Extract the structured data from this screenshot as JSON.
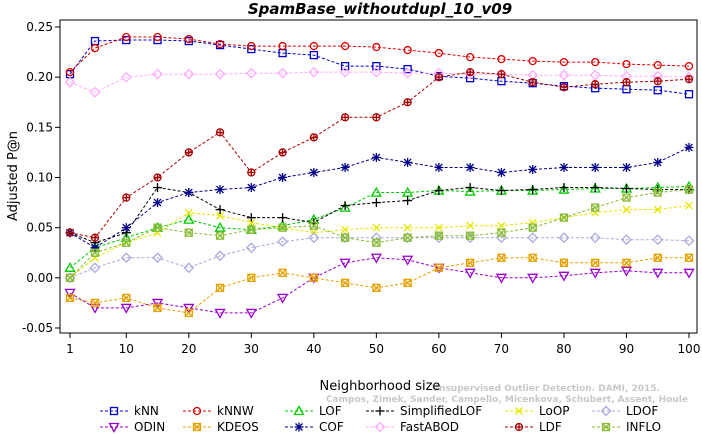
{
  "chart_data": {
    "type": "line",
    "title": "SpamBase_withoutdupl_10_v09",
    "xlabel": "Neighborhood size",
    "ylabel": "Adjusted P@n",
    "xlim": [
      1,
      100
    ],
    "ylim": [
      -0.05,
      0.25
    ],
    "x_ticks": [
      "1",
      "10",
      "20",
      "30",
      "40",
      "50",
      "60",
      "70",
      "80",
      "90",
      "100"
    ],
    "y_ticks": [
      "-0.05",
      "0.00",
      "0.05",
      "0.10",
      "0.15",
      "0.20",
      "0.25"
    ],
    "grid": false,
    "legend_position": "bottom",
    "watermark": [
      "Campos, Zimek, Sander, Campello, Micenkova, Schubert, Assent, Houle",
      "Unsupervised Outlier Detection. DAMI, 2015."
    ],
    "x_points": [
      1,
      5,
      10,
      15,
      20,
      25,
      30,
      35,
      40,
      45,
      50,
      55,
      60,
      65,
      70,
      75,
      80,
      85,
      90,
      95,
      100
    ],
    "series": [
      {
        "name": "kNN",
        "color": "#0000cc",
        "marker": "square",
        "values": [
          0.203,
          0.236,
          0.237,
          0.237,
          0.236,
          0.232,
          0.228,
          0.224,
          0.222,
          0.211,
          0.211,
          0.208,
          0.201,
          0.199,
          0.196,
          0.194,
          0.191,
          0.189,
          0.188,
          0.187,
          0.183
        ]
      },
      {
        "name": "kNNW",
        "color": "#dd0000",
        "marker": "circle",
        "values": [
          0.205,
          0.229,
          0.24,
          0.24,
          0.238,
          0.233,
          0.231,
          0.231,
          0.231,
          0.231,
          0.23,
          0.227,
          0.224,
          0.22,
          0.218,
          0.216,
          0.215,
          0.215,
          0.213,
          0.212,
          0.211
        ]
      },
      {
        "name": "LOF",
        "color": "#00cc00",
        "marker": "triangle-up",
        "values": [
          0.01,
          0.03,
          0.04,
          0.05,
          0.058,
          0.05,
          0.048,
          0.052,
          0.058,
          0.07,
          0.085,
          0.085,
          0.087,
          0.086,
          0.087,
          0.087,
          0.088,
          0.089,
          0.089,
          0.09,
          0.091
        ]
      },
      {
        "name": "SimplifiedLOF",
        "color": "#000000",
        "marker": "plus",
        "values": [
          0.045,
          0.035,
          0.045,
          0.09,
          0.085,
          0.068,
          0.06,
          0.06,
          0.055,
          0.072,
          0.075,
          0.077,
          0.087,
          0.09,
          0.087,
          0.088,
          0.09,
          0.09,
          0.089,
          0.088,
          0.088
        ]
      },
      {
        "name": "LoOP",
        "color": "#e6e600",
        "marker": "cross",
        "values": [
          0.0,
          0.02,
          0.035,
          0.045,
          0.065,
          0.062,
          0.055,
          0.05,
          0.045,
          0.048,
          0.05,
          0.05,
          0.05,
          0.052,
          0.052,
          0.055,
          0.06,
          0.065,
          0.068,
          0.068,
          0.072
        ]
      },
      {
        "name": "LDOF",
        "color": "#aaaadd",
        "marker": "diamond",
        "values": [
          0.0,
          0.01,
          0.02,
          0.02,
          0.01,
          0.022,
          0.03,
          0.036,
          0.04,
          0.04,
          0.04,
          0.04,
          0.04,
          0.04,
          0.04,
          0.04,
          0.04,
          0.04,
          0.038,
          0.038,
          0.037
        ]
      },
      {
        "name": "ODIN",
        "color": "#9900cc",
        "marker": "triangle-down",
        "values": [
          -0.015,
          -0.03,
          -0.03,
          -0.025,
          -0.03,
          -0.035,
          -0.035,
          -0.02,
          0.0,
          0.015,
          0.02,
          0.018,
          0.01,
          0.005,
          0.0,
          0.0,
          0.002,
          0.005,
          0.007,
          0.005,
          0.005
        ]
      },
      {
        "name": "KDEOS",
        "color": "#e6a000",
        "marker": "square-x",
        "values": [
          -0.02,
          -0.025,
          -0.02,
          -0.03,
          -0.035,
          -0.01,
          0.0,
          0.005,
          0.0,
          -0.005,
          -0.01,
          -0.005,
          0.01,
          0.015,
          0.02,
          0.02,
          0.015,
          0.015,
          0.015,
          0.02,
          0.02
        ]
      },
      {
        "name": "COF",
        "color": "#000088",
        "marker": "asterisk",
        "values": [
          0.045,
          0.03,
          0.05,
          0.075,
          0.085,
          0.088,
          0.09,
          0.1,
          0.105,
          0.11,
          0.12,
          0.115,
          0.11,
          0.11,
          0.105,
          0.108,
          0.11,
          0.11,
          0.11,
          0.115,
          0.13
        ]
      },
      {
        "name": "FastABOD",
        "color": "#ffaaff",
        "marker": "diamond",
        "values": [
          0.195,
          0.185,
          0.2,
          0.203,
          0.203,
          0.203,
          0.204,
          0.204,
          0.205,
          0.205,
          0.205,
          0.204,
          0.204,
          0.203,
          0.203,
          0.202,
          0.202,
          0.202,
          0.201,
          0.201,
          0.2
        ]
      },
      {
        "name": "LDF",
        "color": "#aa0000",
        "marker": "circle-plus",
        "values": [
          0.045,
          0.04,
          0.08,
          0.1,
          0.125,
          0.145,
          0.105,
          0.125,
          0.14,
          0.16,
          0.16,
          0.175,
          0.2,
          0.205,
          0.203,
          0.195,
          0.19,
          0.193,
          0.195,
          0.196,
          0.198
        ]
      },
      {
        "name": "INFLO",
        "color": "#88bb33",
        "marker": "square-x",
        "values": [
          0.0,
          0.025,
          0.035,
          0.05,
          0.045,
          0.042,
          0.048,
          0.05,
          0.052,
          0.04,
          0.035,
          0.04,
          0.042,
          0.042,
          0.045,
          0.05,
          0.06,
          0.07,
          0.08,
          0.085,
          0.088
        ]
      }
    ]
  }
}
